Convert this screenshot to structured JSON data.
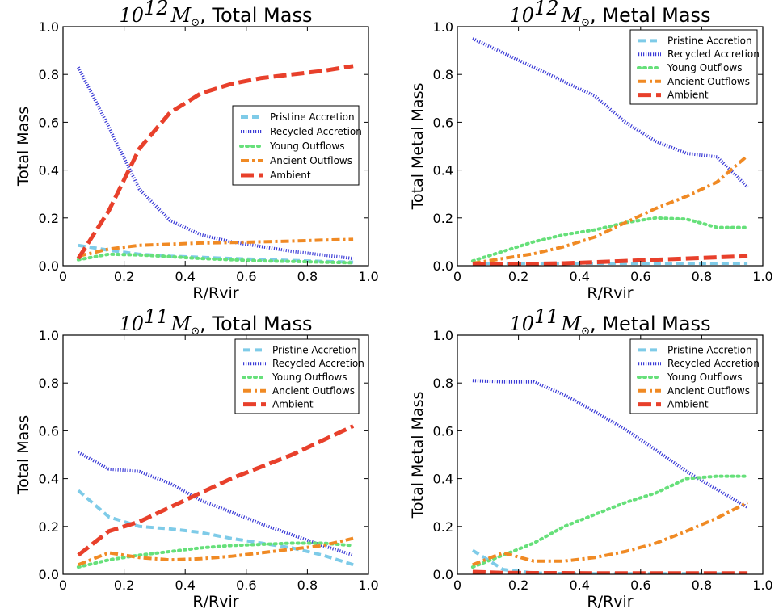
{
  "chart_data": [
    {
      "type": "line",
      "title_main": "10",
      "title_exp": "12",
      "title_rest": ", Total Mass",
      "xlabel": "R/Rvir",
      "ylabel": "Total Mass",
      "xlim": [
        0,
        1.0
      ],
      "ylim": [
        0,
        1.0
      ],
      "xticks": [
        "0",
        "0.2",
        "0.4",
        "0.6",
        "0.8",
        "1.0"
      ],
      "yticks": [
        "0.0",
        "0.2",
        "0.4",
        "0.6",
        "0.8",
        "1.0"
      ],
      "grid": false,
      "legend_position": "center-right",
      "x": [
        0.05,
        0.15,
        0.25,
        0.35,
        0.45,
        0.55,
        0.65,
        0.75,
        0.85,
        0.95
      ],
      "series": [
        {
          "name": "Pristine Accretion",
          "color": "#7ecbe8",
          "style": "dash",
          "values": [
            0.085,
            0.065,
            0.048,
            0.04,
            0.035,
            0.03,
            0.026,
            0.022,
            0.018,
            0.015
          ]
        },
        {
          "name": "Recycled Accretion",
          "color": "#3a3ad6",
          "style": "dotted",
          "values": [
            0.83,
            0.58,
            0.32,
            0.19,
            0.13,
            0.1,
            0.08,
            0.06,
            0.045,
            0.03
          ]
        },
        {
          "name": "Young Outflows",
          "color": "#66e07a",
          "style": "dot",
          "values": [
            0.025,
            0.048,
            0.045,
            0.038,
            0.03,
            0.025,
            0.02,
            0.018,
            0.015,
            0.012
          ]
        },
        {
          "name": "Ancient Outflows",
          "color": "#f08a24",
          "style": "dashdot",
          "values": [
            0.04,
            0.07,
            0.085,
            0.09,
            0.095,
            0.097,
            0.1,
            0.103,
            0.107,
            0.11
          ]
        },
        {
          "name": "Ambient",
          "color": "#e8402b",
          "style": "longdash",
          "values": [
            0.03,
            0.23,
            0.49,
            0.64,
            0.72,
            0.76,
            0.785,
            0.8,
            0.815,
            0.835
          ]
        }
      ]
    },
    {
      "type": "line",
      "title_main": "10",
      "title_exp": "12",
      "title_rest": ", Metal Mass",
      "xlabel": "R/Rvir",
      "ylabel": "Total Metal Mass",
      "xlim": [
        0,
        1.0
      ],
      "ylim": [
        0,
        1.0
      ],
      "xticks": [
        "0",
        "0.2",
        "0.4",
        "0.6",
        "0.8",
        "1.0"
      ],
      "yticks": [
        "0.0",
        "0.2",
        "0.4",
        "0.6",
        "0.8",
        "1.0"
      ],
      "grid": false,
      "legend_position": "top-right",
      "x": [
        0.05,
        0.15,
        0.25,
        0.35,
        0.45,
        0.55,
        0.65,
        0.75,
        0.85,
        0.95
      ],
      "series": [
        {
          "name": "Pristine Accretion",
          "color": "#7ecbe8",
          "style": "dash",
          "values": [
            0.01,
            0.01,
            0.01,
            0.01,
            0.01,
            0.01,
            0.01,
            0.01,
            0.01,
            0.01
          ]
        },
        {
          "name": "Recycled Accretion",
          "color": "#3a3ad6",
          "style": "dotted",
          "values": [
            0.95,
            0.89,
            0.83,
            0.77,
            0.71,
            0.6,
            0.52,
            0.47,
            0.455,
            0.33
          ]
        },
        {
          "name": "Young Outflows",
          "color": "#66e07a",
          "style": "dot",
          "values": [
            0.02,
            0.06,
            0.1,
            0.13,
            0.15,
            0.18,
            0.2,
            0.195,
            0.16,
            0.16
          ]
        },
        {
          "name": "Ancient Outflows",
          "color": "#f08a24",
          "style": "dashdot",
          "values": [
            0.01,
            0.03,
            0.05,
            0.08,
            0.12,
            0.18,
            0.24,
            0.29,
            0.35,
            0.46
          ]
        },
        {
          "name": "Ambient",
          "color": "#e8402b",
          "style": "longdash",
          "values": [
            0.005,
            0.006,
            0.008,
            0.01,
            0.015,
            0.02,
            0.025,
            0.03,
            0.035,
            0.04
          ]
        }
      ]
    },
    {
      "type": "line",
      "title_main": "10",
      "title_exp": "11",
      "title_rest": ", Total Mass",
      "xlabel": "R/Rvir",
      "ylabel": "Total Mass",
      "xlim": [
        0,
        1.0
      ],
      "ylim": [
        0,
        1.0
      ],
      "xticks": [
        "0",
        "0.2",
        "0.4",
        "0.6",
        "0.8",
        "1.0"
      ],
      "yticks": [
        "0.0",
        "0.2",
        "0.4",
        "0.6",
        "0.8",
        "1.0"
      ],
      "grid": false,
      "legend_position": "top-right",
      "x": [
        0.05,
        0.15,
        0.25,
        0.35,
        0.45,
        0.55,
        0.65,
        0.75,
        0.85,
        0.95
      ],
      "series": [
        {
          "name": "Pristine Accretion",
          "color": "#7ecbe8",
          "style": "dash",
          "values": [
            0.35,
            0.24,
            0.2,
            0.19,
            0.175,
            0.15,
            0.13,
            0.11,
            0.08,
            0.04
          ]
        },
        {
          "name": "Recycled Accretion",
          "color": "#3a3ad6",
          "style": "dotted",
          "values": [
            0.51,
            0.44,
            0.43,
            0.38,
            0.31,
            0.26,
            0.21,
            0.165,
            0.12,
            0.08
          ]
        },
        {
          "name": "Young Outflows",
          "color": "#66e07a",
          "style": "dot",
          "values": [
            0.03,
            0.06,
            0.08,
            0.095,
            0.11,
            0.12,
            0.125,
            0.13,
            0.13,
            0.12
          ]
        },
        {
          "name": "Ancient Outflows",
          "color": "#f08a24",
          "style": "dashdot",
          "values": [
            0.04,
            0.09,
            0.07,
            0.06,
            0.065,
            0.075,
            0.09,
            0.105,
            0.12,
            0.15
          ]
        },
        {
          "name": "Ambient",
          "color": "#e8402b",
          "style": "longdash",
          "values": [
            0.08,
            0.18,
            0.22,
            0.28,
            0.34,
            0.4,
            0.45,
            0.5,
            0.56,
            0.62
          ]
        }
      ]
    },
    {
      "type": "line",
      "title_main": "10",
      "title_exp": "11",
      "title_rest": ", Metal Mass",
      "xlabel": "R/Rvir",
      "ylabel": "Total Metal Mass",
      "xlim": [
        0,
        1.0
      ],
      "ylim": [
        0,
        1.0
      ],
      "xticks": [
        "0",
        "0.2",
        "0.4",
        "0.6",
        "0.8",
        "1.0"
      ],
      "yticks": [
        "0.0",
        "0.2",
        "0.4",
        "0.6",
        "0.8",
        "1.0"
      ],
      "grid": false,
      "legend_position": "top-right",
      "x": [
        0.05,
        0.15,
        0.25,
        0.35,
        0.45,
        0.55,
        0.65,
        0.75,
        0.85,
        0.95
      ],
      "series": [
        {
          "name": "Pristine Accretion",
          "color": "#7ecbe8",
          "style": "dash",
          "values": [
            0.1,
            0.02,
            0.005,
            0.003,
            0.002,
            0.002,
            0.002,
            0.002,
            0.002,
            0.002
          ]
        },
        {
          "name": "Recycled Accretion",
          "color": "#3a3ad6",
          "style": "dotted",
          "values": [
            0.81,
            0.805,
            0.805,
            0.75,
            0.68,
            0.605,
            0.52,
            0.43,
            0.355,
            0.28
          ]
        },
        {
          "name": "Young Outflows",
          "color": "#66e07a",
          "style": "dot",
          "values": [
            0.03,
            0.08,
            0.13,
            0.2,
            0.25,
            0.3,
            0.34,
            0.4,
            0.41,
            0.41
          ]
        },
        {
          "name": "Ancient Outflows",
          "color": "#f08a24",
          "style": "dashdot",
          "values": [
            0.04,
            0.09,
            0.055,
            0.055,
            0.07,
            0.095,
            0.13,
            0.18,
            0.235,
            0.3
          ]
        },
        {
          "name": "Ambient",
          "color": "#e8402b",
          "style": "longdash",
          "values": [
            0.01,
            0.006,
            0.005,
            0.005,
            0.004,
            0.004,
            0.004,
            0.004,
            0.004,
            0.004
          ]
        }
      ]
    }
  ]
}
